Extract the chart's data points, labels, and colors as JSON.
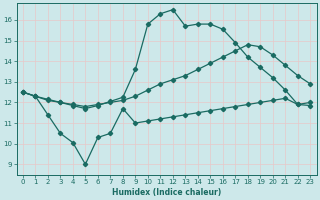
{
  "xlabel": "Humidex (Indice chaleur)",
  "bg_color": "#cde8ea",
  "grid_color": "#b0d8db",
  "line_color": "#1a6b62",
  "ylim": [
    8.5,
    16.8
  ],
  "xlim": [
    -0.5,
    23.5
  ],
  "yticks": [
    9,
    10,
    11,
    12,
    13,
    14,
    15,
    16
  ],
  "xticks": [
    0,
    1,
    2,
    3,
    4,
    5,
    6,
    7,
    8,
    9,
    10,
    11,
    12,
    13,
    14,
    15,
    16,
    17,
    18,
    19,
    20,
    21,
    22,
    23
  ],
  "line_upper_x": [
    0,
    1,
    2,
    3,
    4,
    5,
    6,
    7,
    8,
    9,
    10,
    11,
    12,
    13,
    14,
    15,
    16,
    17,
    18,
    19,
    20,
    21,
    22,
    23
  ],
  "line_upper_y": [
    12.5,
    12.3,
    12.15,
    12.0,
    11.85,
    11.7,
    11.85,
    12.05,
    12.25,
    13.6,
    15.8,
    16.3,
    16.5,
    15.7,
    15.8,
    15.8,
    15.55,
    14.9,
    14.2,
    13.7,
    13.2,
    12.6,
    11.9,
    12.0
  ],
  "line_mid_x": [
    0,
    1,
    2,
    3,
    4,
    5,
    6,
    7,
    8,
    9,
    10,
    11,
    12,
    13,
    14,
    15,
    16,
    17,
    18,
    19,
    20,
    21,
    22,
    23
  ],
  "line_mid_y": [
    12.5,
    12.3,
    12.1,
    12.0,
    11.9,
    11.8,
    11.9,
    12.0,
    12.1,
    12.3,
    12.6,
    12.9,
    13.1,
    13.3,
    13.6,
    13.9,
    14.2,
    14.5,
    14.8,
    14.7,
    14.3,
    13.8,
    13.3,
    12.9
  ],
  "line_lower_x": [
    0,
    1,
    2,
    3,
    4,
    5,
    6,
    7,
    8,
    9,
    10,
    11,
    12,
    13,
    14,
    15,
    16,
    17,
    18,
    19,
    20,
    21,
    22,
    23
  ],
  "line_lower_y": [
    12.5,
    12.3,
    11.4,
    10.5,
    10.05,
    9.0,
    10.3,
    10.5,
    11.7,
    11.0,
    11.1,
    11.2,
    11.3,
    11.4,
    11.5,
    11.6,
    11.7,
    11.8,
    11.9,
    12.0,
    12.1,
    12.2,
    11.9,
    11.85
  ]
}
